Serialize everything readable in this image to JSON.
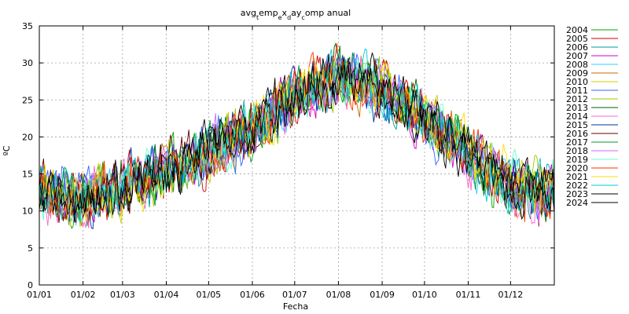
{
  "chart_data": {
    "type": "line",
    "title": "avg_temp_ex_day_comp anual",
    "title_parts": [
      {
        "text": "avg",
        "sub": false
      },
      {
        "text": "temp",
        "sub": true
      },
      {
        "text": "emp",
        "sub": false
      },
      {
        "text": "e",
        "sub": true
      },
      {
        "text": "x",
        "sub": false
      },
      {
        "text": "day",
        "sub": true
      },
      {
        "text": "day",
        "sub": false
      },
      {
        "text": "c",
        "sub": true
      },
      {
        "text": "omp anual",
        "sub": false
      }
    ],
    "title_display": [
      {
        "text": "avg",
        "sub": false
      },
      {
        "text": "t",
        "sub": true
      },
      {
        "text": "emp",
        "sub": false
      },
      {
        "text": "e",
        "sub": true
      },
      {
        "text": "x",
        "sub": false
      },
      {
        "text": "d",
        "sub": true
      },
      {
        "text": "ay",
        "sub": false
      },
      {
        "text": "c",
        "sub": true
      },
      {
        "text": "omp anual",
        "sub": false
      }
    ],
    "xlabel": "Fecha",
    "ylabel": "ºC",
    "ylim": [
      0,
      35
    ],
    "yticks": [
      0,
      5,
      10,
      15,
      20,
      25,
      30,
      35
    ],
    "xlim_day": [
      1,
      366
    ],
    "xticks": [
      {
        "label": "01/01",
        "day": 1
      },
      {
        "label": "01/02",
        "day": 32
      },
      {
        "label": "01/03",
        "day": 60
      },
      {
        "label": "01/04",
        "day": 91
      },
      {
        "label": "01/05",
        "day": 121
      },
      {
        "label": "01/06",
        "day": 152
      },
      {
        "label": "01/07",
        "day": 182
      },
      {
        "label": "01/08",
        "day": 213
      },
      {
        "label": "01/09",
        "day": 244
      },
      {
        "label": "01/10",
        "day": 274
      },
      {
        "label": "01/11",
        "day": 305
      },
      {
        "label": "01/12",
        "day": 335
      }
    ],
    "grid": true,
    "legend_position": "right",
    "series": [
      {
        "name": "2004",
        "color": "#00aa00"
      },
      {
        "name": "2005",
        "color": "#cc0000"
      },
      {
        "name": "2006",
        "color": "#009999"
      },
      {
        "name": "2007",
        "color": "#cc00cc"
      },
      {
        "name": "2008",
        "color": "#33ccff"
      },
      {
        "name": "2009",
        "color": "#cc6600"
      },
      {
        "name": "2010",
        "color": "#cccc00"
      },
      {
        "name": "2011",
        "color": "#3366ff"
      },
      {
        "name": "2012",
        "color": "#99cc00"
      },
      {
        "name": "2013",
        "color": "#006600"
      },
      {
        "name": "2014",
        "color": "#ff66cc"
      },
      {
        "name": "2015",
        "color": "#003399"
      },
      {
        "name": "2016",
        "color": "#660000"
      },
      {
        "name": "2017",
        "color": "#009933"
      },
      {
        "name": "2018",
        "color": "#cc66ff"
      },
      {
        "name": "2019",
        "color": "#66ffcc"
      },
      {
        "name": "2020",
        "color": "#ff3300"
      },
      {
        "name": "2021",
        "color": "#ffdd00"
      },
      {
        "name": "2022",
        "color": "#00cccc"
      },
      {
        "name": "2023",
        "color": "#000000"
      },
      {
        "name": "2024",
        "color": "#000000"
      }
    ],
    "daily_mean_profile": {
      "day": [
        1,
        15,
        32,
        46,
        60,
        75,
        91,
        106,
        121,
        136,
        152,
        167,
        182,
        197,
        213,
        228,
        244,
        259,
        274,
        289,
        305,
        320,
        335,
        350,
        366
      ],
      "mean_c": [
        12.5,
        12.0,
        11.5,
        12.5,
        13.5,
        14.5,
        15.5,
        16.5,
        18.0,
        19.5,
        21.0,
        23.0,
        25.5,
        27.0,
        28.0,
        27.5,
        26.5,
        24.5,
        22.5,
        20.0,
        18.0,
        15.5,
        13.5,
        12.5,
        12.5
      ]
    },
    "daily_spread_c": 3.2
  }
}
